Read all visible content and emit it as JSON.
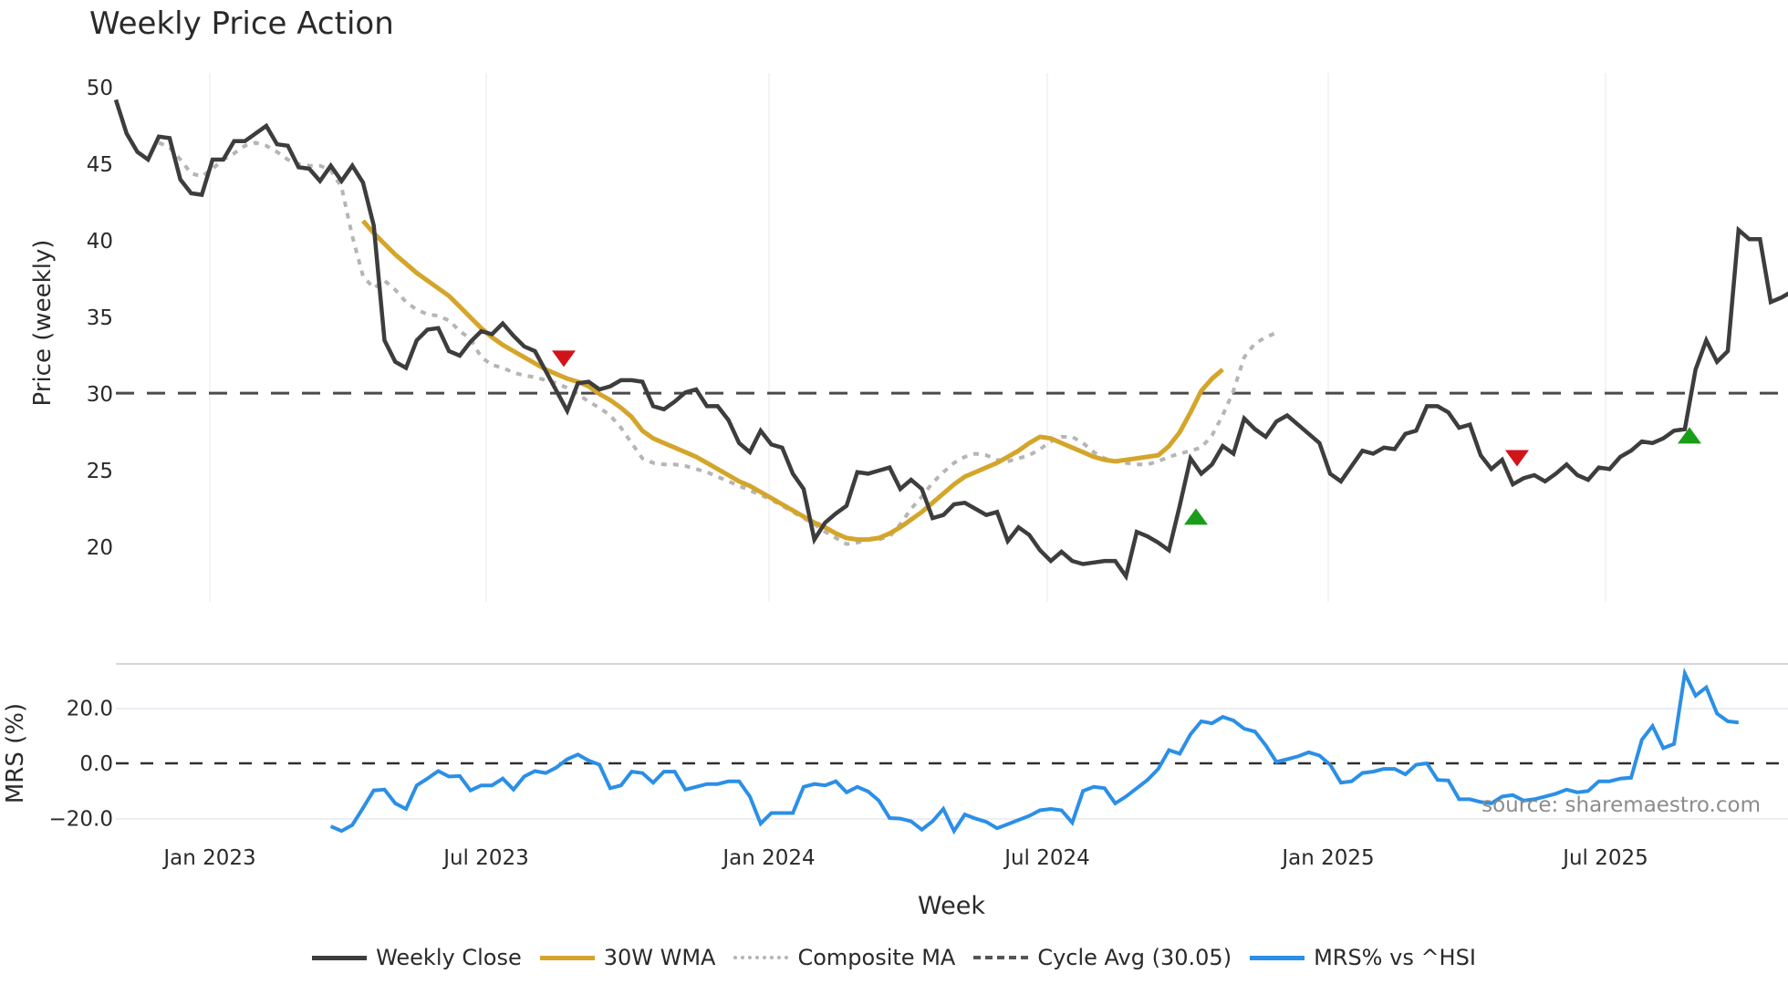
{
  "title": "Weekly Price Action",
  "watermark": "source: sharemaestro.com",
  "xaxis": {
    "label": "Week",
    "ticks": [
      "Jan 2023",
      "Jul 2023",
      "Jan 2024",
      "Jul 2024",
      "Jan 2025",
      "Jul 2025"
    ]
  },
  "price_axis": {
    "label": "Price (weekly)",
    "ticks": [
      "50",
      "45",
      "40",
      "35",
      "30",
      "25",
      "20"
    ]
  },
  "mrs_axis": {
    "label": "MRS (%)",
    "ticks": [
      "20.0",
      "0.0",
      "−20.0"
    ]
  },
  "legend": {
    "close": "Weekly Close",
    "wma": "30W WMA",
    "composite": "Composite MA",
    "cycle": "Cycle Avg (30.05)",
    "mrs": "MRS% vs ^HSI"
  },
  "colors": {
    "close": "#3d3d3d",
    "wma": "#d4a52a",
    "composite": "#b5b5b5",
    "cycle": "#555555",
    "mrs": "#2b8fe6",
    "buy": "#1a9e1a",
    "sell": "#d0141a"
  },
  "chart_data": [
    {
      "type": "line",
      "title": "Weekly Price Action",
      "xlabel": "Week",
      "ylabel": "Price (weekly)",
      "ylim": [
        16.5,
        51
      ],
      "x_range": [
        "2022-11",
        "2025-10"
      ],
      "x_ticks": [
        "Jan 2023",
        "Jul 2023",
        "Jan 2024",
        "Jul 2024",
        "Jan 2025",
        "Jul 2025"
      ],
      "grid": true,
      "series": [
        {
          "name": "Weekly Close",
          "start_index": 0,
          "values": [
            49.2,
            47.0,
            45.8,
            45.3,
            46.8,
            46.7,
            44.0,
            43.1,
            43.0,
            45.3,
            45.3,
            46.5,
            46.5,
            47.0,
            47.5,
            46.3,
            46.2,
            44.8,
            44.7,
            43.9,
            44.9,
            43.9,
            44.9,
            43.8,
            41.0,
            33.5,
            32.1,
            31.7,
            33.5,
            34.2,
            34.3,
            32.8,
            32.5,
            33.4,
            34.1,
            33.9,
            34.6,
            33.8,
            33.1,
            32.8,
            31.5,
            30.2,
            28.9,
            30.7,
            30.8,
            30.3,
            30.5,
            30.9,
            30.9,
            30.8,
            29.2,
            29.0,
            29.5,
            30.1,
            30.3,
            29.2,
            29.2,
            28.3,
            26.8,
            26.2,
            27.6,
            26.7,
            26.5,
            24.8,
            23.8,
            20.5,
            21.6,
            22.2,
            22.7,
            24.9,
            24.8,
            25.0,
            25.2,
            23.8,
            24.4,
            23.8,
            21.9,
            22.1,
            22.8,
            22.9,
            22.5,
            22.1,
            22.3,
            20.4,
            21.3,
            20.8,
            19.8,
            19.1,
            19.7,
            19.1,
            18.9,
            19.0,
            19.1,
            19.1,
            18.1,
            21.0,
            20.7,
            20.3,
            19.8,
            22.7,
            25.8,
            24.8,
            25.4,
            26.6,
            26.1,
            28.4,
            27.7,
            27.2,
            28.2,
            28.6,
            28.0,
            27.4,
            26.8,
            24.8,
            24.3,
            25.3,
            26.3,
            26.1,
            26.5,
            26.4,
            27.4,
            27.6,
            29.2,
            29.2,
            28.8,
            27.8,
            28.0,
            26.0,
            25.1,
            25.7,
            24.1,
            24.5,
            24.7,
            24.3,
            24.8,
            25.4,
            24.7,
            24.4,
            25.2,
            25.1,
            25.9,
            26.3,
            26.9,
            26.8,
            27.1,
            27.6,
            27.7,
            31.6,
            33.5,
            32.1,
            32.8,
            40.7,
            40.1,
            40.1,
            36.0,
            36.3,
            36.7
          ]
        },
        {
          "name": "30W WMA",
          "start_index": 23,
          "values": [
            41.3,
            40.5,
            39.8,
            39.1,
            38.5,
            37.9,
            37.4,
            36.9,
            36.4,
            35.7,
            35.0,
            34.3,
            33.7,
            33.2,
            32.8,
            32.4,
            32.0,
            31.6,
            31.3,
            31.0,
            30.8,
            30.5,
            30.0,
            29.6,
            29.1,
            28.5,
            27.6,
            27.1,
            26.8,
            26.5,
            26.2,
            25.9,
            25.5,
            25.1,
            24.7,
            24.3,
            24.0,
            23.6,
            23.2,
            22.8,
            22.4,
            22.0,
            21.6,
            21.3,
            20.9,
            20.6,
            20.5,
            20.5,
            20.6,
            20.9,
            21.3,
            21.8,
            22.3,
            22.9,
            23.5,
            24.1,
            24.6,
            24.9,
            25.2,
            25.5,
            25.9,
            26.3,
            26.8,
            27.2,
            27.1,
            26.8,
            26.5,
            26.2,
            25.9,
            25.7,
            25.6,
            25.7,
            25.8,
            25.9,
            26.0,
            26.6,
            27.5,
            28.8,
            30.2,
            31.0,
            31.6
          ]
        },
        {
          "name": "Composite MA",
          "start_index": 4,
          "values": [
            46.4,
            46.1,
            45.3,
            44.4,
            44.2,
            44.7,
            45.3,
            45.7,
            46.2,
            46.4,
            46.2,
            45.8,
            45.3,
            45.0,
            44.9,
            44.9,
            44.6,
            43.5,
            40.3,
            37.7,
            36.9,
            37.4,
            36.8,
            36.0,
            35.5,
            35.2,
            35.1,
            34.8,
            34.1,
            33.6,
            32.4,
            31.9,
            31.7,
            31.4,
            31.2,
            31.1,
            30.9,
            30.7,
            30.4,
            30.0,
            29.5,
            29.1,
            28.6,
            27.8,
            26.8,
            25.8,
            25.5,
            25.4,
            25.4,
            25.3,
            25.1,
            24.9,
            24.6,
            24.3,
            24.0,
            23.7,
            23.4,
            23.1,
            22.7,
            22.3,
            21.9,
            21.5,
            21.0,
            20.6,
            20.2,
            20.3,
            20.5,
            20.5,
            20.7,
            21.5,
            22.5,
            23.3,
            24.2,
            24.9,
            25.5,
            25.9,
            26.1,
            26.0,
            25.7,
            25.6,
            25.8,
            26.0,
            26.4,
            26.9,
            27.2,
            27.2,
            26.8,
            26.2,
            25.8,
            25.6,
            25.5,
            25.4,
            25.4,
            25.6,
            25.9,
            26.1,
            26.3,
            26.5,
            27.3,
            28.6,
            30.2,
            32.4,
            33.3,
            33.7,
            34.0
          ]
        },
        {
          "name": "Cycle Avg (30.05)",
          "type": "hline",
          "value": 30.05
        }
      ],
      "markers": [
        {
          "type": "sell",
          "shape": "triangle-down",
          "date": "2023-09",
          "price": 32.3
        },
        {
          "type": "buy",
          "shape": "triangle-up",
          "date": "2024-10",
          "price": 22.0
        },
        {
          "type": "sell",
          "shape": "triangle-down",
          "date": "2025-05",
          "price": 25.8
        },
        {
          "type": "buy",
          "shape": "triangle-up",
          "date": "2025-09",
          "price": 27.3
        }
      ]
    },
    {
      "type": "line",
      "title": "",
      "xlabel": "Week",
      "ylabel": "MRS (%)",
      "ylim": [
        -26,
        36
      ],
      "y_ticks": [
        20.0,
        0.0,
        -20.0
      ],
      "grid": true,
      "series": [
        {
          "name": "MRS% vs ^HSI",
          "start_index": 20,
          "values": [
            -22.8,
            -24.5,
            -22.3,
            -16.2,
            -9.8,
            -9.5,
            -14.5,
            -16.5,
            -8.0,
            -5.5,
            -2.8,
            -4.8,
            -4.6,
            -9.8,
            -8.0,
            -8.0,
            -5.5,
            -9.5,
            -4.8,
            -2.8,
            -3.5,
            -1.5,
            1.5,
            3.2,
            1.0,
            -0.5,
            -9.0,
            -8.0,
            -3.0,
            -3.5,
            -7.0,
            -3.0,
            -3.0,
            -9.5,
            -8.5,
            -7.5,
            -7.5,
            -6.5,
            -6.5,
            -12.0,
            -21.8,
            -18.0,
            -18.0,
            -18.0,
            -8.5,
            -7.5,
            -8.0,
            -6.5,
            -10.5,
            -8.5,
            -10.2,
            -13.5,
            -19.8,
            -20.0,
            -21.0,
            -24.0,
            -21.0,
            -16.5,
            -24.5,
            -18.5,
            -20.0,
            -21.2,
            -23.5,
            -22.0,
            -20.5,
            -19.0,
            -17.0,
            -16.5,
            -17.0,
            -21.5,
            -10.0,
            -8.5,
            -9.0,
            -14.5,
            -12.0,
            -9.0,
            -6.0,
            -2.0,
            4.8,
            3.5,
            10.5,
            15.2,
            14.5,
            16.8,
            15.5,
            12.5,
            11.5,
            6.5,
            0.5,
            1.5,
            2.5,
            4.0,
            2.8,
            -0.5,
            -7.0,
            -6.5,
            -3.5,
            -3.0,
            -2.0,
            -2.0,
            -4.0,
            -0.5,
            0.0,
            -6.0,
            -6.2,
            -13.0,
            -13.0,
            -14.0,
            -14.5,
            -12.0,
            -11.5,
            -13.5,
            -13.0,
            -12.0,
            -11.0,
            -9.5,
            -10.5,
            -10.0,
            -6.5,
            -6.5,
            -5.5,
            -5.2,
            8.5,
            13.5,
            5.5,
            7.0,
            32.5,
            24.5,
            27.5,
            18.0,
            15.2,
            14.8
          ]
        }
      ],
      "reference_line": {
        "value": 0.0,
        "style": "dashed"
      }
    }
  ]
}
